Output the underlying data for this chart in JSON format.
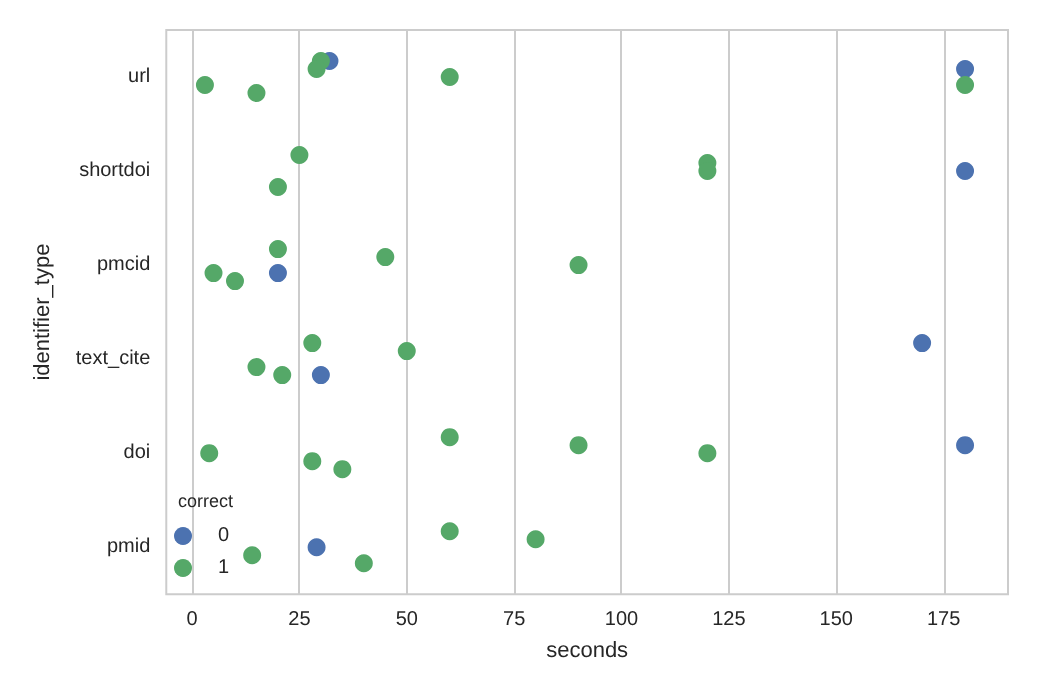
{
  "chart_data": {
    "type": "scatter",
    "orientation": "horizontal",
    "xlabel": "seconds",
    "ylabel": "identifier_type",
    "legend_title": "correct",
    "legend": "bottom left",
    "grid": "x",
    "marker": "circle",
    "categories": [
      "url",
      "shortdoi",
      "pmcid",
      "text_cite",
      "doi",
      "pmid"
    ],
    "xlim": [
      -6,
      190
    ],
    "xticks": [
      0,
      25,
      50,
      75,
      100,
      125,
      150,
      175
    ],
    "series": [
      {
        "name": "0",
        "color": "#4c72b0",
        "x": [
          "url",
          "url",
          "shortdoi",
          "pmcid",
          "text_cite",
          "text_cite",
          "doi",
          "pmid"
        ],
        "values": [
          32,
          180,
          180,
          20,
          30,
          170,
          180,
          29
        ]
      },
      {
        "name": "1",
        "color": "#55a868",
        "x": [
          "url",
          "url",
          "url",
          "url",
          "url",
          "url",
          "shortdoi",
          "shortdoi",
          "shortdoi",
          "shortdoi",
          "pmcid",
          "pmcid",
          "pmcid",
          "pmcid",
          "pmcid",
          "text_cite",
          "text_cite",
          "text_cite",
          "text_cite",
          "doi",
          "doi",
          "doi",
          "doi",
          "doi",
          "doi",
          "pmid",
          "pmid",
          "pmid",
          "pmid"
        ],
        "values": [
          3,
          15,
          30,
          29,
          60,
          180,
          20,
          25,
          120,
          120,
          5,
          10,
          20,
          45,
          90,
          15,
          21,
          28,
          50,
          4,
          28,
          35,
          60,
          90,
          120,
          14,
          40,
          60,
          80
        ]
      }
    ]
  }
}
